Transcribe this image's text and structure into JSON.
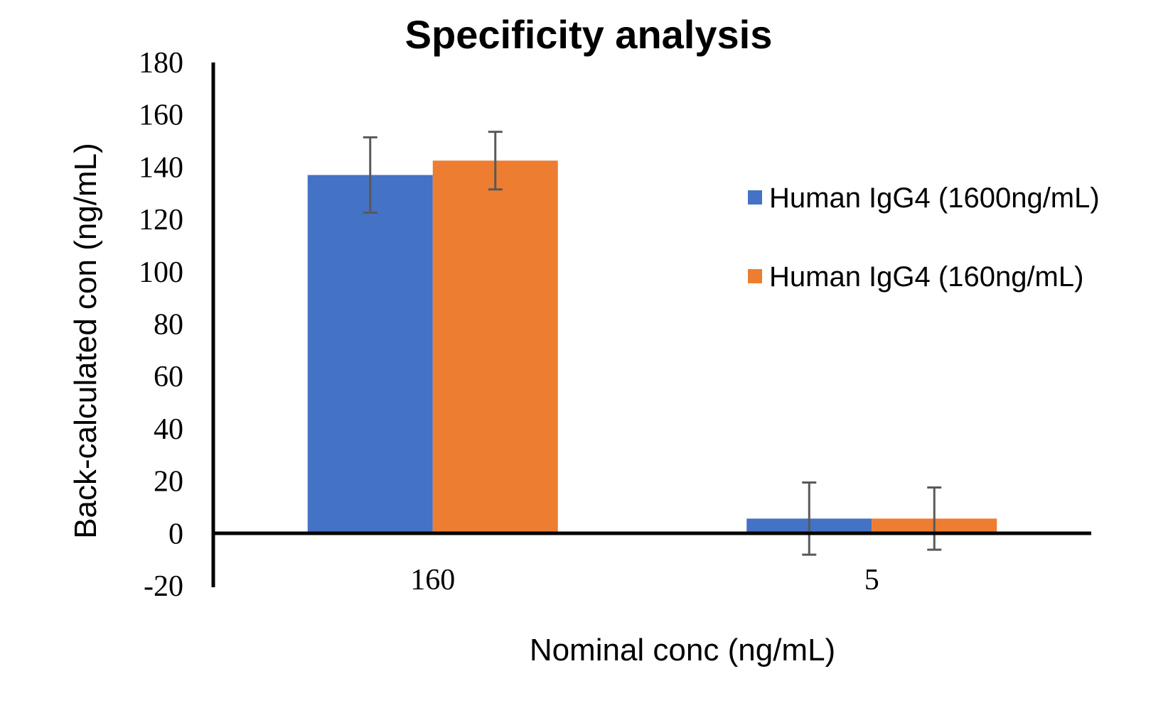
{
  "chart_data": {
    "type": "bar",
    "title": "Specificity analysis",
    "xlabel": "Nominal conc (ng/mL)",
    "ylabel": "Back-calculated con (ng/mL)",
    "categories": [
      "160",
      "5"
    ],
    "ylim": [
      -20,
      180
    ],
    "yticks": [
      180,
      160,
      140,
      120,
      100,
      80,
      60,
      40,
      20,
      0,
      -20
    ],
    "ytick_labels": [
      "180",
      "160",
      "140",
      "120",
      "100",
      "80",
      "60",
      "40",
      "20",
      "0",
      "-20"
    ],
    "grid": false,
    "legend_position": "right",
    "series": [
      {
        "name": "Human IgG4 (1600ng/mL)",
        "color": "#4472C4",
        "values": [
          137.0,
          5.7
        ],
        "errors": [
          14.4,
          13.8
        ]
      },
      {
        "name": "Human IgG4 (160ng/mL)",
        "color": "#ED7D31",
        "values": [
          142.5,
          5.7
        ],
        "errors": [
          11.0,
          11.9
        ]
      }
    ],
    "error_bar_color": "#595959"
  }
}
